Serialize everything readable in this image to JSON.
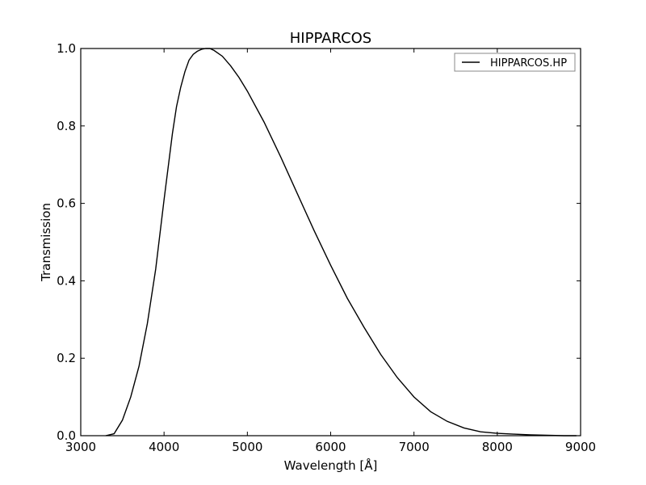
{
  "chart_data": {
    "type": "line",
    "title": "HIPPARCOS",
    "xlabel": "Wavelength [Å]",
    "ylabel": "Transmission",
    "xlim": [
      3000,
      9000
    ],
    "ylim": [
      0.0,
      1.0
    ],
    "xticks": [
      "3000",
      "4000",
      "5000",
      "6000",
      "7000",
      "8000",
      "9000"
    ],
    "yticks": [
      "0.0",
      "0.2",
      "0.4",
      "0.6",
      "0.8",
      "1.0"
    ],
    "grid": false,
    "legend_position": "top-right",
    "series": [
      {
        "name": "HIPPARCOS.HP",
        "color": "#000000",
        "x": [
          3300,
          3400,
          3500,
          3600,
          3700,
          3800,
          3900,
          4000,
          4100,
          4150,
          4200,
          4250,
          4300,
          4350,
          4400,
          4450,
          4500,
          4550,
          4600,
          4700,
          4800,
          4900,
          5000,
          5200,
          5400,
          5600,
          5800,
          6000,
          6200,
          6400,
          6600,
          6800,
          7000,
          7200,
          7400,
          7600,
          7800,
          8000,
          8200,
          8400,
          8600,
          8800,
          8950
        ],
        "y": [
          0.0,
          0.005,
          0.04,
          0.1,
          0.18,
          0.29,
          0.43,
          0.61,
          0.78,
          0.85,
          0.9,
          0.94,
          0.97,
          0.985,
          0.993,
          0.998,
          1.0,
          1.0,
          0.995,
          0.98,
          0.955,
          0.925,
          0.89,
          0.81,
          0.72,
          0.625,
          0.53,
          0.44,
          0.355,
          0.28,
          0.21,
          0.15,
          0.1,
          0.062,
          0.037,
          0.02,
          0.01,
          0.006,
          0.004,
          0.002,
          0.001,
          0.0,
          0.0
        ]
      }
    ]
  }
}
